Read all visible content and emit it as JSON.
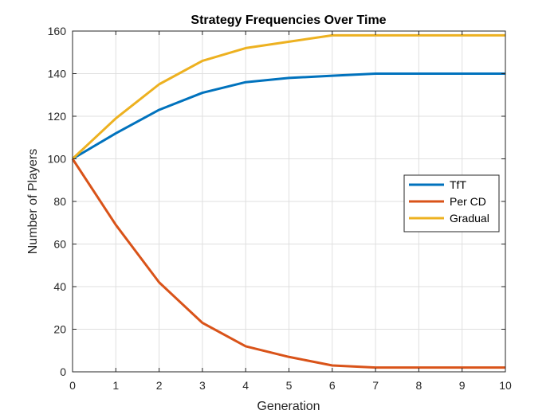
{
  "chart_data": {
    "type": "line",
    "title": "Strategy Frequencies Over Time",
    "xlabel": "Generation",
    "ylabel": "Number of Players",
    "x": [
      0,
      1,
      2,
      3,
      4,
      5,
      6,
      7,
      8,
      9,
      10
    ],
    "xlim": [
      0,
      10
    ],
    "ylim": [
      0,
      160
    ],
    "xticks": [
      "0",
      "1",
      "2",
      "3",
      "4",
      "5",
      "6",
      "7",
      "8",
      "9",
      "10"
    ],
    "yticks": [
      "0",
      "20",
      "40",
      "60",
      "80",
      "100",
      "120",
      "140",
      "160"
    ],
    "grid": true,
    "legend_position": "right",
    "series": [
      {
        "name": "TfT",
        "color": "#0072BD",
        "values": [
          100,
          112,
          123,
          131,
          136,
          138,
          139,
          140,
          140,
          140,
          140
        ]
      },
      {
        "name": "Per CD",
        "color": "#D95319",
        "values": [
          100,
          69,
          42,
          23,
          12,
          7,
          3,
          2,
          2,
          2,
          2
        ]
      },
      {
        "name": "Gradual",
        "color": "#EDB120",
        "values": [
          100,
          119,
          135,
          146,
          152,
          155,
          158,
          158,
          158,
          158,
          158
        ]
      }
    ]
  }
}
